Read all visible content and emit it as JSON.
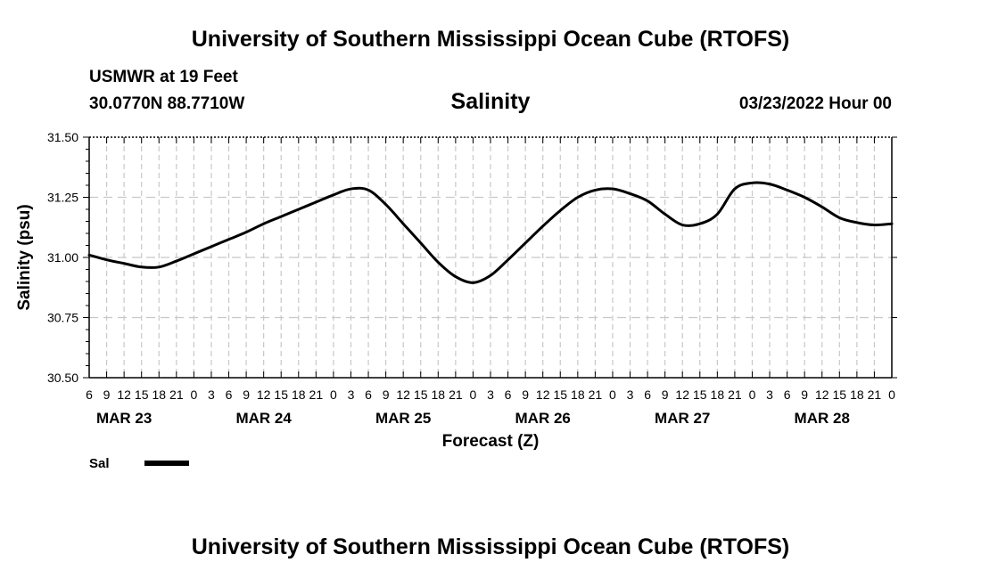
{
  "page": {
    "title_top": "University of Southern Mississippi Ocean Cube (RTOFS)",
    "title_bottom": "University of Southern Mississippi Ocean Cube (RTOFS)",
    "station_name": "USMWR at 19 Feet",
    "station_coords": "30.0770N  88.7710W",
    "chart_title": "Salinity",
    "run_time": "03/23/2022 Hour 00",
    "legend_label": "Sal"
  },
  "colors": {
    "line": "#000000",
    "grid": "#c8c8c8",
    "background": "#ffffff"
  },
  "chart_data": {
    "type": "line",
    "title": "Salinity",
    "xlabel": "Forecast (Z)",
    "ylabel": "Salinity (psu)",
    "ylim": [
      30.5,
      31.5
    ],
    "yticks": [
      30.5,
      30.75,
      31.0,
      31.25,
      31.5
    ],
    "ytick_labels": [
      "30.50",
      "30.75",
      "31.00",
      "31.25",
      "31.50"
    ],
    "xlim_hours": [
      6,
      144
    ],
    "x_tick_step_hours": 3,
    "x_tick_labels": [
      "6",
      "9",
      "12",
      "15",
      "18",
      "21",
      "0",
      "3",
      "6",
      "9",
      "12",
      "15",
      "18",
      "21",
      "0",
      "3",
      "6",
      "9",
      "12",
      "15",
      "18",
      "21",
      "0",
      "3",
      "6",
      "9",
      "12",
      "15",
      "18",
      "21",
      "0",
      "3",
      "6",
      "9",
      "12",
      "15",
      "18",
      "21",
      "0",
      "3",
      "6",
      "9",
      "12",
      "15",
      "18",
      "21",
      "0"
    ],
    "date_labels": [
      {
        "label": "MAR 23",
        "hour": 12
      },
      {
        "label": "MAR 24",
        "hour": 36
      },
      {
        "label": "MAR 25",
        "hour": 60
      },
      {
        "label": "MAR 26",
        "hour": 84
      },
      {
        "label": "MAR 27",
        "hour": 108
      },
      {
        "label": "MAR 28",
        "hour": 132
      }
    ],
    "grid": true,
    "series": [
      {
        "name": "Sal",
        "x_hours": [
          6,
          9,
          12,
          15,
          18,
          21,
          24,
          27,
          30,
          33,
          36,
          39,
          42,
          45,
          48,
          51,
          54,
          57,
          60,
          63,
          66,
          69,
          72,
          75,
          78,
          81,
          84,
          87,
          90,
          93,
          96,
          99,
          102,
          105,
          108,
          111,
          114,
          117,
          120,
          123,
          126,
          129,
          132,
          135,
          138,
          141,
          144
        ],
        "values": [
          31.01,
          30.99,
          30.975,
          30.96,
          30.96,
          30.985,
          31.015,
          31.045,
          31.075,
          31.105,
          31.14,
          31.17,
          31.2,
          31.23,
          31.26,
          31.285,
          31.28,
          31.22,
          31.14,
          31.06,
          30.98,
          30.92,
          30.895,
          30.925,
          30.99,
          31.06,
          31.13,
          31.195,
          31.25,
          31.28,
          31.285,
          31.265,
          31.235,
          31.18,
          31.135,
          31.14,
          31.18,
          31.285,
          31.31,
          31.305,
          31.28,
          31.25,
          31.21,
          31.165,
          31.145,
          31.135,
          31.14
        ]
      }
    ],
    "legend": [
      {
        "label": "Sal",
        "position": "bottom-left"
      }
    ]
  }
}
